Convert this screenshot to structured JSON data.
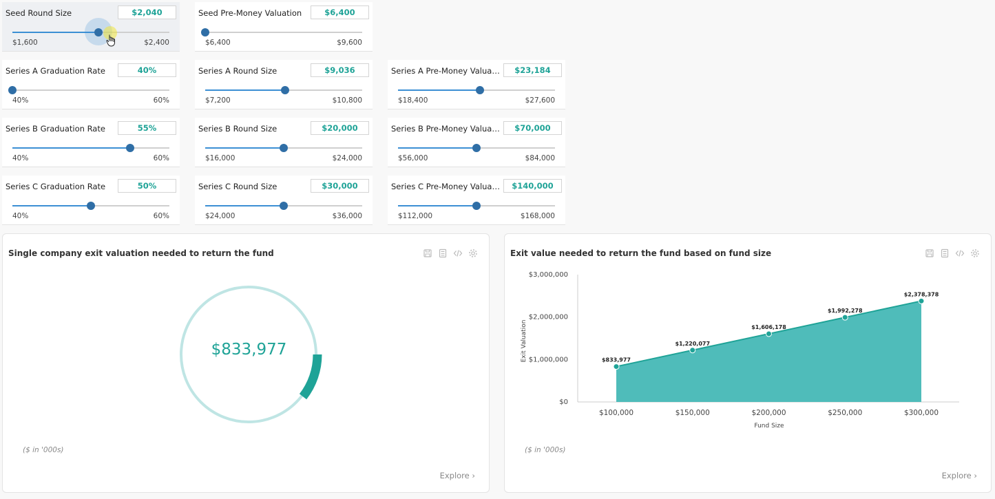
{
  "sliders": [
    {
      "label": "Seed Round Size",
      "value": "$2,040",
      "min_label": "$1,600",
      "max_label": "$2,400",
      "position": 0.55,
      "active": true
    },
    {
      "label": "Seed Pre-Money Valuation",
      "value": "$6,400",
      "min_label": "$6,400",
      "max_label": "$9,600",
      "position": 0.0
    },
    {
      "label": "Series A Graduation Rate",
      "value": "40%",
      "min_label": "40%",
      "max_label": "60%",
      "position": 0.0
    },
    {
      "label": "Series A Round Size",
      "value": "$9,036",
      "min_label": "$7,200",
      "max_label": "$10,800",
      "position": 0.51
    },
    {
      "label": "Series A Pre-Money Valuation",
      "value": "$23,184",
      "min_label": "$18,400",
      "max_label": "$27,600",
      "position": 0.52
    },
    {
      "label": "Series B Graduation Rate",
      "value": "55%",
      "min_label": "40%",
      "max_label": "60%",
      "position": 0.75
    },
    {
      "label": "Series B Round Size",
      "value": "$20,000",
      "min_label": "$16,000",
      "max_label": "$24,000",
      "position": 0.5
    },
    {
      "label": "Series B Pre-Money Valuation",
      "value": "$70,000",
      "min_label": "$56,000",
      "max_label": "$84,000",
      "position": 0.5
    },
    {
      "label": "Series C Graduation Rate",
      "value": "50%",
      "min_label": "40%",
      "max_label": "60%",
      "position": 0.5
    },
    {
      "label": "Series C Round Size",
      "value": "$30,000",
      "min_label": "$24,000",
      "max_label": "$36,000",
      "position": 0.5
    },
    {
      "label": "Series C Pre-Money Valuation",
      "value": "$140,000",
      "min_label": "$112,000",
      "max_label": "$168,000",
      "position": 0.5
    }
  ],
  "colors": {
    "accent": "#1fa397",
    "area_fill": "#4fbcba",
    "ring": "#bfe5e4",
    "slider_fill": "#3b8fd4",
    "slider_thumb": "#2f6ea6"
  },
  "panel_left": {
    "title": "Single company exit valuation needed to return the fund",
    "note": "($ in '000s)",
    "explore": "Explore ›",
    "toolbar_icons": [
      "save-icon",
      "calculator-icon",
      "code-icon",
      "gear-icon"
    ],
    "donut": {
      "value_label": "$833,977",
      "highlight_fraction": 0.105
    }
  },
  "panel_right": {
    "title": "Exit value needed to return the fund based on fund size",
    "note": "($ in '000s)",
    "explore": "Explore ›",
    "toolbar_icons": [
      "save-icon",
      "calculator-icon",
      "code-icon",
      "gear-icon"
    ]
  },
  "chart_data": {
    "type": "area",
    "title": "Exit value needed to return the fund based on fund size",
    "xlabel": "Fund Size",
    "ylabel": "Exit Valuation",
    "categories": [
      "$100,000",
      "$150,000",
      "$200,000",
      "$250,000",
      "$300,000"
    ],
    "x": [
      100000,
      150000,
      200000,
      250000,
      300000
    ],
    "values": [
      833977,
      1220077,
      1606178,
      1992278,
      2378378
    ],
    "data_labels": [
      "$833,977",
      "$1,220,077",
      "$1,606,178",
      "$1,992,278",
      "$2,378,378"
    ],
    "yticks": [
      "$0",
      "$1,000,000",
      "$2,000,000",
      "$3,000,000"
    ],
    "ylim": [
      0,
      3000000
    ],
    "grid": false,
    "legend": "none"
  }
}
